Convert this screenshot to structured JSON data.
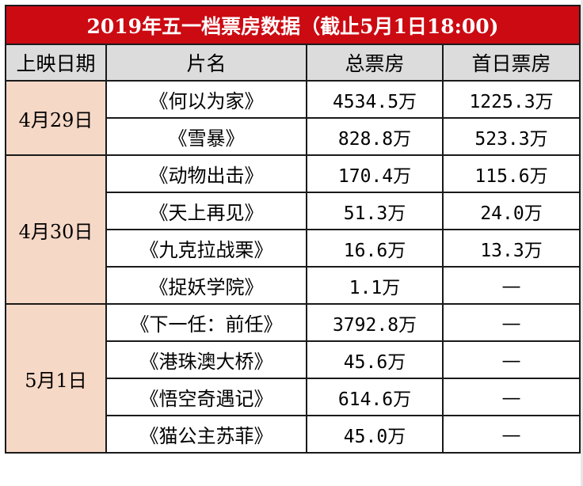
{
  "title": "2019年五一档票房数据（截止5月1日18:00)",
  "headers": {
    "date": "上映日期",
    "film": "片名",
    "total": "总票房",
    "first_day": "首日票房"
  },
  "groups": [
    {
      "date": "4月29日",
      "films": [
        {
          "name": "《何以为家》",
          "total": "4534.5",
          "total_unit": "万",
          "first_day": "1225.3",
          "first_day_unit": "万"
        },
        {
          "name": "《雪暴》",
          "total": "828.8",
          "total_unit": "万",
          "first_day": "523.3",
          "first_day_unit": "万"
        }
      ]
    },
    {
      "date": "4月30日",
      "films": [
        {
          "name": "《动物出击》",
          "total": "170.4",
          "total_unit": "万",
          "first_day": "115.6",
          "first_day_unit": "万"
        },
        {
          "name": "《天上再见》",
          "total": "51.3",
          "total_unit": "万",
          "first_day": "24.0",
          "first_day_unit": "万"
        },
        {
          "name": "《九克拉战栗》",
          "total": "16.6",
          "total_unit": "万",
          "first_day": "13.3",
          "first_day_unit": "万"
        },
        {
          "name": "《捉妖学院》",
          "total": "1.1",
          "total_unit": "万",
          "first_day": "—",
          "first_day_unit": ""
        }
      ]
    },
    {
      "date": "5月1日",
      "films": [
        {
          "name": "《下一任：前任》",
          "total": "3792.8",
          "total_unit": "万",
          "first_day": "—",
          "first_day_unit": ""
        },
        {
          "name": "《港珠澳大桥》",
          "total": "45.6",
          "total_unit": "万",
          "first_day": "—",
          "first_day_unit": ""
        },
        {
          "name": "《悟空奇遇记》",
          "total": "614.6",
          "total_unit": "万",
          "first_day": "—",
          "first_day_unit": ""
        },
        {
          "name": "《猫公主苏菲》",
          "total": "45.0",
          "total_unit": "万",
          "first_day": "—",
          "first_day_unit": ""
        }
      ]
    }
  ],
  "colors": {
    "title_bg": "#cc0a12",
    "title_text": "#ffffff",
    "header_bg": "#dcdcdc",
    "date_bg": "#f6d8c6",
    "border": "#1a1a1a"
  }
}
